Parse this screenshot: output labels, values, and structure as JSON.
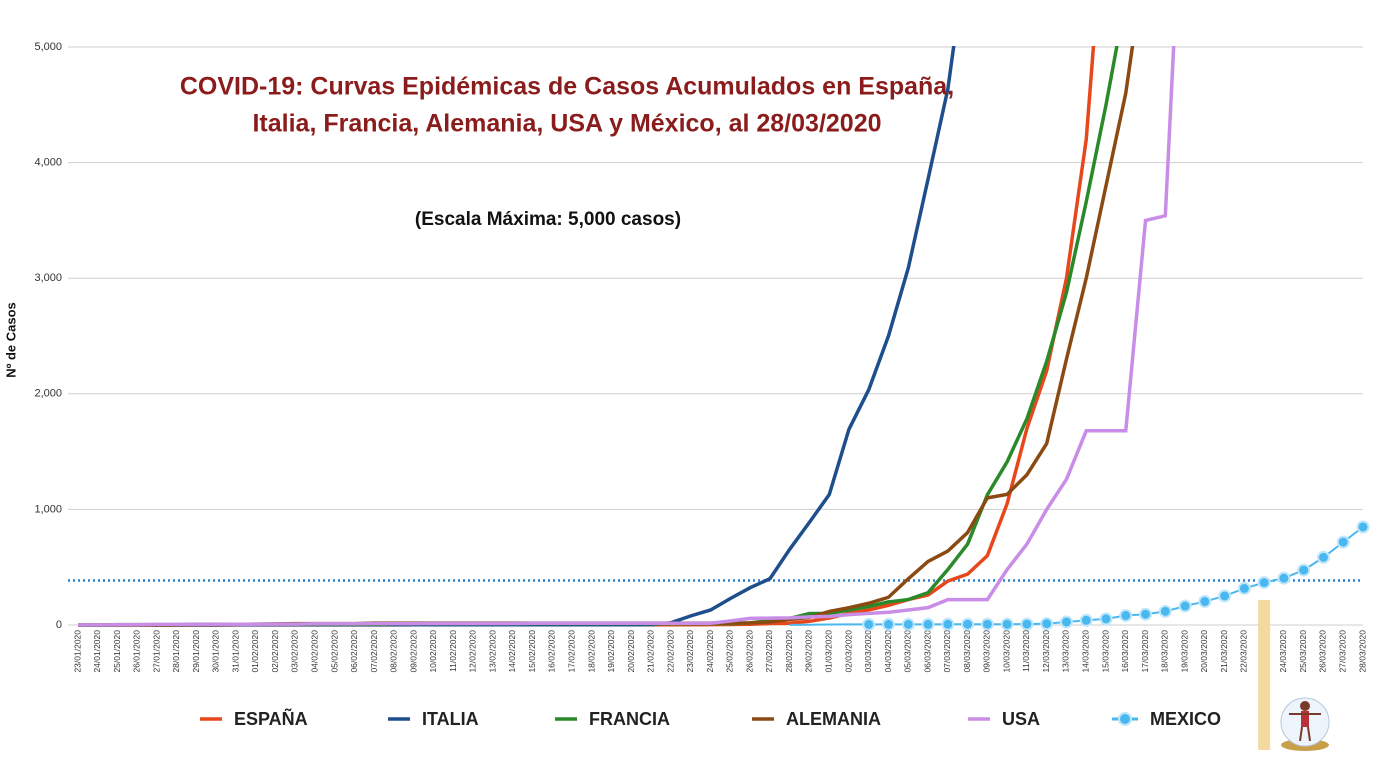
{
  "chart_data": {
    "type": "line",
    "title": [
      "COVID-19: Curvas Epidémicas de Casos Acumulados en España,",
      "Italia, Francia, Alemania, USA y México, al 28/03/2020"
    ],
    "subtitle": "(Escala Máxima: 5,000 casos)",
    "y_label": "Nº de Casos",
    "categories": [
      "23/01/2020",
      "24/01/2020",
      "25/01/2020",
      "26/01/2020",
      "27/01/2020",
      "28/01/2020",
      "29/01/2020",
      "30/01/2020",
      "31/01/2020",
      "01/02/2020",
      "02/02/2020",
      "03/02/2020",
      "04/02/2020",
      "05/02/2020",
      "06/02/2020",
      "07/02/2020",
      "08/02/2020",
      "09/02/2020",
      "10/02/2020",
      "11/02/2020",
      "12/02/2020",
      "13/02/2020",
      "14/02/2020",
      "15/02/2020",
      "16/02/2020",
      "17/02/2020",
      "18/02/2020",
      "19/02/2020",
      "20/02/2020",
      "21/02/2020",
      "22/02/2020",
      "23/02/2020",
      "24/02/2020",
      "25/02/2020",
      "26/02/2020",
      "27/02/2020",
      "28/02/2020",
      "29/02/2020",
      "01/03/2020",
      "02/03/2020",
      "03/03/2020",
      "04/03/2020",
      "05/03/2020",
      "06/03/2020",
      "07/03/2020",
      "08/03/2020",
      "09/03/2020",
      "10/03/2020",
      "11/03/2020",
      "12/03/2020",
      "13/03/2020",
      "14/03/2020",
      "15/03/2020",
      "16/03/2020",
      "17/03/2020",
      "18/03/2020",
      "19/03/2020",
      "20/03/2020",
      "21/03/2020",
      "22/03/2020",
      "23/03/2020",
      "24/03/2020",
      "25/03/2020",
      "26/03/2020",
      "27/03/2020",
      "28/03/2020"
    ],
    "series": [
      {
        "name": "ESPAÑA",
        "color": "#e8471c",
        "values": [
          0,
          0,
          0,
          0,
          0,
          0,
          0,
          0,
          1,
          1,
          1,
          1,
          1,
          1,
          1,
          1,
          1,
          2,
          2,
          2,
          2,
          2,
          2,
          2,
          2,
          2,
          2,
          2,
          2,
          2,
          2,
          2,
          3,
          4,
          6,
          13,
          15,
          32,
          60,
          100,
          130,
          170,
          220,
          260,
          380,
          440,
          600,
          1050,
          1700,
          2200,
          3000,
          4200,
          6400,
          null,
          null,
          null,
          null,
          null,
          null,
          null,
          null,
          null,
          null,
          null,
          null,
          null
        ]
      },
      {
        "name": "ITALIA",
        "color": "#1f4e8c",
        "values": [
          0,
          0,
          0,
          0,
          0,
          0,
          0,
          0,
          2,
          2,
          2,
          2,
          2,
          2,
          2,
          2,
          2,
          2,
          2,
          2,
          2,
          2,
          2,
          2,
          2,
          2,
          2,
          2,
          2,
          3,
          20,
          79,
          130,
          229,
          323,
          400,
          655,
          889,
          1128,
          1694,
          2036,
          2502,
          3089,
          3858,
          4636,
          5883,
          null,
          null,
          null,
          null,
          null,
          null,
          null,
          null,
          null,
          null,
          null,
          null,
          null,
          null,
          null,
          null,
          null,
          null,
          null,
          null
        ]
      },
      {
        "name": "FRANCIA",
        "color": "#2a8a2a",
        "values": [
          0,
          0,
          3,
          3,
          3,
          3,
          6,
          6,
          6,
          6,
          6,
          6,
          6,
          6,
          6,
          6,
          11,
          11,
          11,
          11,
          11,
          12,
          12,
          12,
          12,
          12,
          12,
          12,
          12,
          12,
          12,
          12,
          12,
          12,
          18,
          38,
          57,
          100,
          100,
          130,
          160,
          200,
          220,
          280,
          480,
          700,
          1126,
          1412,
          1784,
          2281,
          2876,
          3661,
          4499,
          5423,
          null,
          null,
          null,
          null,
          null,
          null,
          null,
          null,
          null,
          null,
          null,
          null
        ]
      },
      {
        "name": "ALEMANIA",
        "color": "#8b4a12",
        "values": [
          0,
          0,
          0,
          0,
          0,
          1,
          4,
          4,
          5,
          8,
          10,
          12,
          12,
          12,
          12,
          16,
          16,
          16,
          16,
          16,
          16,
          16,
          16,
          16,
          16,
          16,
          16,
          16,
          16,
          16,
          16,
          16,
          16,
          16,
          18,
          26,
          48,
          66,
          117,
          150,
          188,
          240,
          400,
          550,
          640,
          800,
          1100,
          1130,
          1300,
          1570,
          2300,
          3000,
          3800,
          4600,
          5800,
          null,
          null,
          null,
          null,
          null,
          null,
          null,
          null,
          null,
          null,
          null
        ]
      },
      {
        "name": "USA",
        "color": "#c88de6",
        "values": [
          1,
          1,
          2,
          2,
          5,
          5,
          5,
          5,
          6,
          7,
          8,
          8,
          11,
          11,
          11,
          12,
          12,
          12,
          13,
          13,
          13,
          13,
          13,
          15,
          15,
          15,
          15,
          15,
          15,
          15,
          15,
          15,
          15,
          35,
          57,
          60,
          62,
          70,
          75,
          90,
          100,
          110,
          130,
          150,
          220,
          220,
          220,
          480,
          700,
          1000,
          1260,
          1680,
          1680,
          1680,
          3500,
          3540,
          7000,
          null,
          null,
          null,
          null,
          null,
          null,
          null,
          null,
          null
        ]
      },
      {
        "name": "MEXICO",
        "color": "#4ab8f0",
        "markers": true,
        "values": [
          null,
          null,
          null,
          null,
          null,
          null,
          null,
          null,
          null,
          null,
          null,
          null,
          null,
          null,
          null,
          null,
          null,
          null,
          null,
          null,
          null,
          null,
          null,
          null,
          null,
          null,
          null,
          null,
          null,
          null,
          null,
          null,
          null,
          null,
          null,
          null,
          1,
          2,
          4,
          5,
          5,
          5,
          5,
          5,
          6,
          7,
          7,
          7,
          8,
          12,
          26,
          41,
          53,
          82,
          93,
          118,
          164,
          203,
          251,
          316,
          367,
          405,
          475,
          585,
          717,
          848
        ]
      }
    ],
    "ylim": [
      0,
      5000
    ],
    "yticks": [
      0,
      {
        "value": 1000,
        "label": "1,000"
      },
      {
        "value": 2000,
        "label": "2,000"
      },
      {
        "value": 3000,
        "label": "3,000"
      },
      {
        "value": 4000,
        "label": "4,000"
      },
      {
        "value": 5000,
        "label": "5,000"
      }
    ],
    "grid": true,
    "reference_line": {
      "value": 385,
      "color": "#2a7fd4"
    },
    "highlight_category": 60
  }
}
